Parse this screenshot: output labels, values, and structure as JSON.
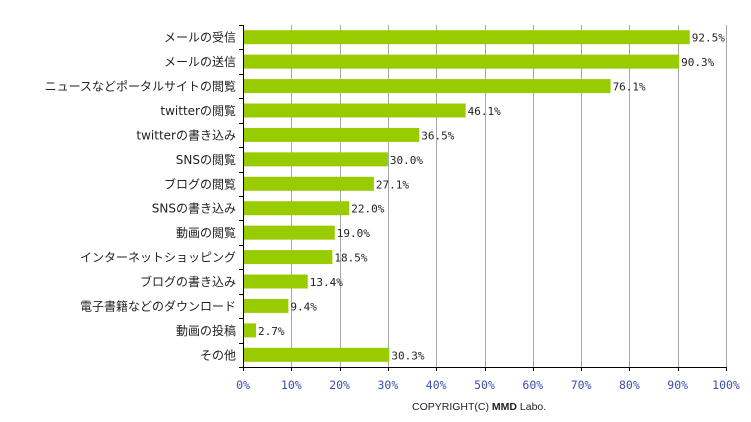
{
  "chart_data": {
    "type": "bar",
    "orientation": "horizontal",
    "categories": [
      "メールの受信",
      "メールの送信",
      "ニュースなどポータルサイトの閲覧",
      "twitterの閲覧",
      "twitterの書き込み",
      "SNSの閲覧",
      "ブログの閲覧",
      "SNSの書き込み",
      "動画の閲覧",
      "インターネットショッピング",
      "ブログの書き込み",
      "電子書籍などのダウンロード",
      "動画の投稿",
      "その他"
    ],
    "values": [
      92.5,
      90.3,
      76.1,
      46.1,
      36.5,
      30.0,
      27.1,
      22.0,
      19.0,
      18.5,
      13.4,
      9.4,
      2.7,
      30.3
    ],
    "value_labels": [
      "92.5%",
      "90.3%",
      "76.1%",
      "46.1%",
      "36.5%",
      "30.0%",
      "27.1%",
      "22.0%",
      "19.0%",
      "18.5%",
      "13.4%",
      "9.4%",
      "2.7%",
      "30.3%"
    ],
    "xlim": [
      0,
      100
    ],
    "x_ticks": [
      0,
      10,
      20,
      30,
      40,
      50,
      60,
      70,
      80,
      90,
      100
    ],
    "x_tick_labels": [
      "0%",
      "10%",
      "20%",
      "30%",
      "40%",
      "50%",
      "60%",
      "70%",
      "80%",
      "90%",
      "100%"
    ],
    "title": "",
    "xlabel": "",
    "ylabel": "",
    "grid": true,
    "bar_color": "#99cc00",
    "tick_label_color": "#3a4fb0"
  },
  "footer": {
    "copyright_prefix": "COPYRIGHT(C) ",
    "copyright_brand": "MMD",
    "copyright_suffix": " Labo."
  }
}
